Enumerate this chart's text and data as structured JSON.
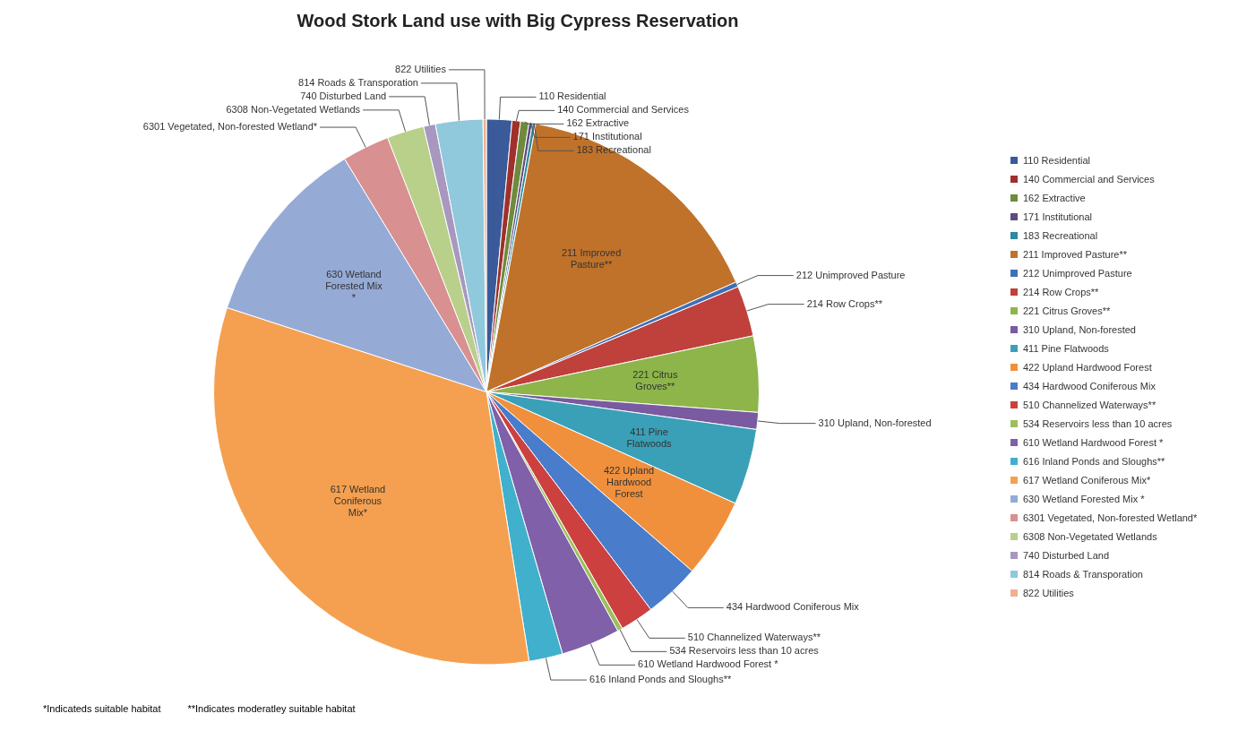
{
  "chart_data": {
    "type": "pie",
    "title": "Wood Stork Land use with Big Cypress Reservation",
    "categories": [
      "110 Residential",
      "140 Commercial and Services",
      "162 Extractive",
      "171 Institutional",
      "183 Recreational",
      "211 Improved Pasture**",
      "212 Unimproved Pasture",
      "214 Row Crops**",
      "221 Citrus Groves**",
      "310 Upland, Non-forested",
      "411 Pine Flatwoods",
      "422 Upland Hardwood Forest",
      "434 Hardwood Coniferous Mix",
      "510 Channelized Waterways**",
      "534 Reservoirs less than 10 acres",
      "610 Wetland Hardwood Forest *",
      "616 Inland Ponds and Sloughs**",
      "617 Wetland Coniferous Mix*",
      "630 Wetland Forested Mix *",
      "6301 Vegetated, Non-forested Wetland*",
      "6308 Non-Vegetated Wetlands",
      "740 Disturbed Land",
      "814 Roads & Transporation",
      "822 Utilities"
    ],
    "values": [
      1.5,
      0.5,
      0.5,
      0.2,
      0.2,
      15.5,
      0.3,
      3,
      4.5,
      1,
      4.5,
      4.7,
      3.3,
      2,
      0.3,
      3.5,
      2,
      32.5,
      11.3,
      2.8,
      2.2,
      0.7,
      2.8,
      0.2
    ],
    "colors": [
      "#3a5a99",
      "#a0302c",
      "#6e8b3d",
      "#5e4a7e",
      "#2e8a9c",
      "#c0722a",
      "#3f6fb8",
      "#c0403c",
      "#8db54a",
      "#7a5aa0",
      "#3aa0b8",
      "#f0903c",
      "#4a7ccc",
      "#cc4040",
      "#9cc05a",
      "#8060a8",
      "#40b0cc",
      "#f5a050",
      "#95aad5",
      "#d89090",
      "#b8d08a",
      "#a898c0",
      "#90c8dc",
      "#f0b090"
    ],
    "legend": "right",
    "annotations": [
      "*Indicateds suitable habitat",
      "**Indicates moderatley suitable habitat"
    ]
  }
}
